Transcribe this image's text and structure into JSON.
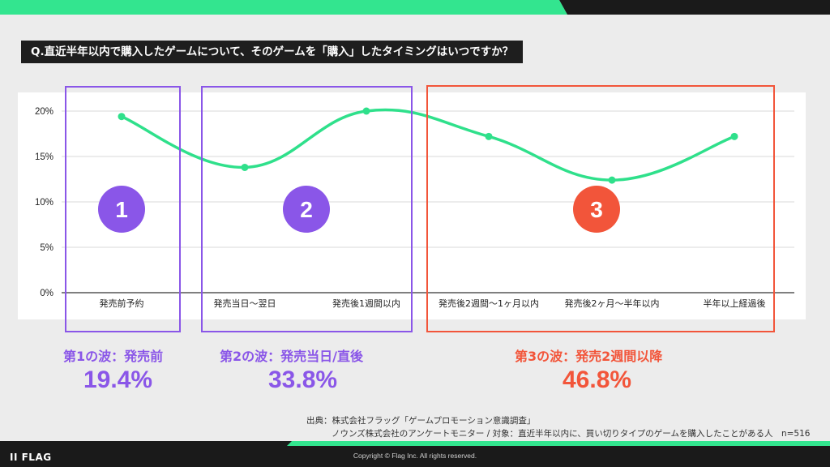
{
  "question": "Q.直近半年以内で購入したゲームについて、そのゲームを「購入」したタイミングはいつですか？",
  "colors": {
    "line": "#2fe08b",
    "purple": "#8a56e8",
    "orange": "#f2553a",
    "accent": "#33e58f",
    "dark": "#1e1e1e"
  },
  "chart_data": {
    "type": "line",
    "categories": [
      "発売前予約",
      "発売当日〜翌日",
      "発売後1週間以内",
      "発売後2週間〜1ヶ月以内",
      "発売後2ヶ月〜半年以内",
      "半年以上経過後"
    ],
    "values": [
      19.4,
      13.8,
      20.0,
      17.2,
      12.4,
      17.2
    ],
    "ylim": [
      0,
      20
    ],
    "yticks": [
      0,
      5,
      10,
      15,
      20
    ],
    "ytick_labels": [
      "0%",
      "5%",
      "10%",
      "15%",
      "20%"
    ],
    "grid": true
  },
  "waves": [
    {
      "badge": "1",
      "title": "第1の波：発売前",
      "percent": "19.4%",
      "color": "purple"
    },
    {
      "badge": "2",
      "title": "第2の波：発売当日/直後",
      "percent": "33.8%",
      "color": "purple"
    },
    {
      "badge": "3",
      "title": "第3の波：発売2週間以降",
      "percent": "46.8%",
      "color": "orange"
    }
  ],
  "source": {
    "line1": "出典：株式会社フラッグ「ゲームプロモーション意識調査」",
    "line2": "ノウンズ株式会社のアンケートモニター / 対象：直近半年以内に、買い切りタイプのゲームを購入したことがある人　n=516"
  },
  "footer": {
    "logo": "II FLAG",
    "copyright": "Copyright © Flag Inc. All rights reserved."
  }
}
